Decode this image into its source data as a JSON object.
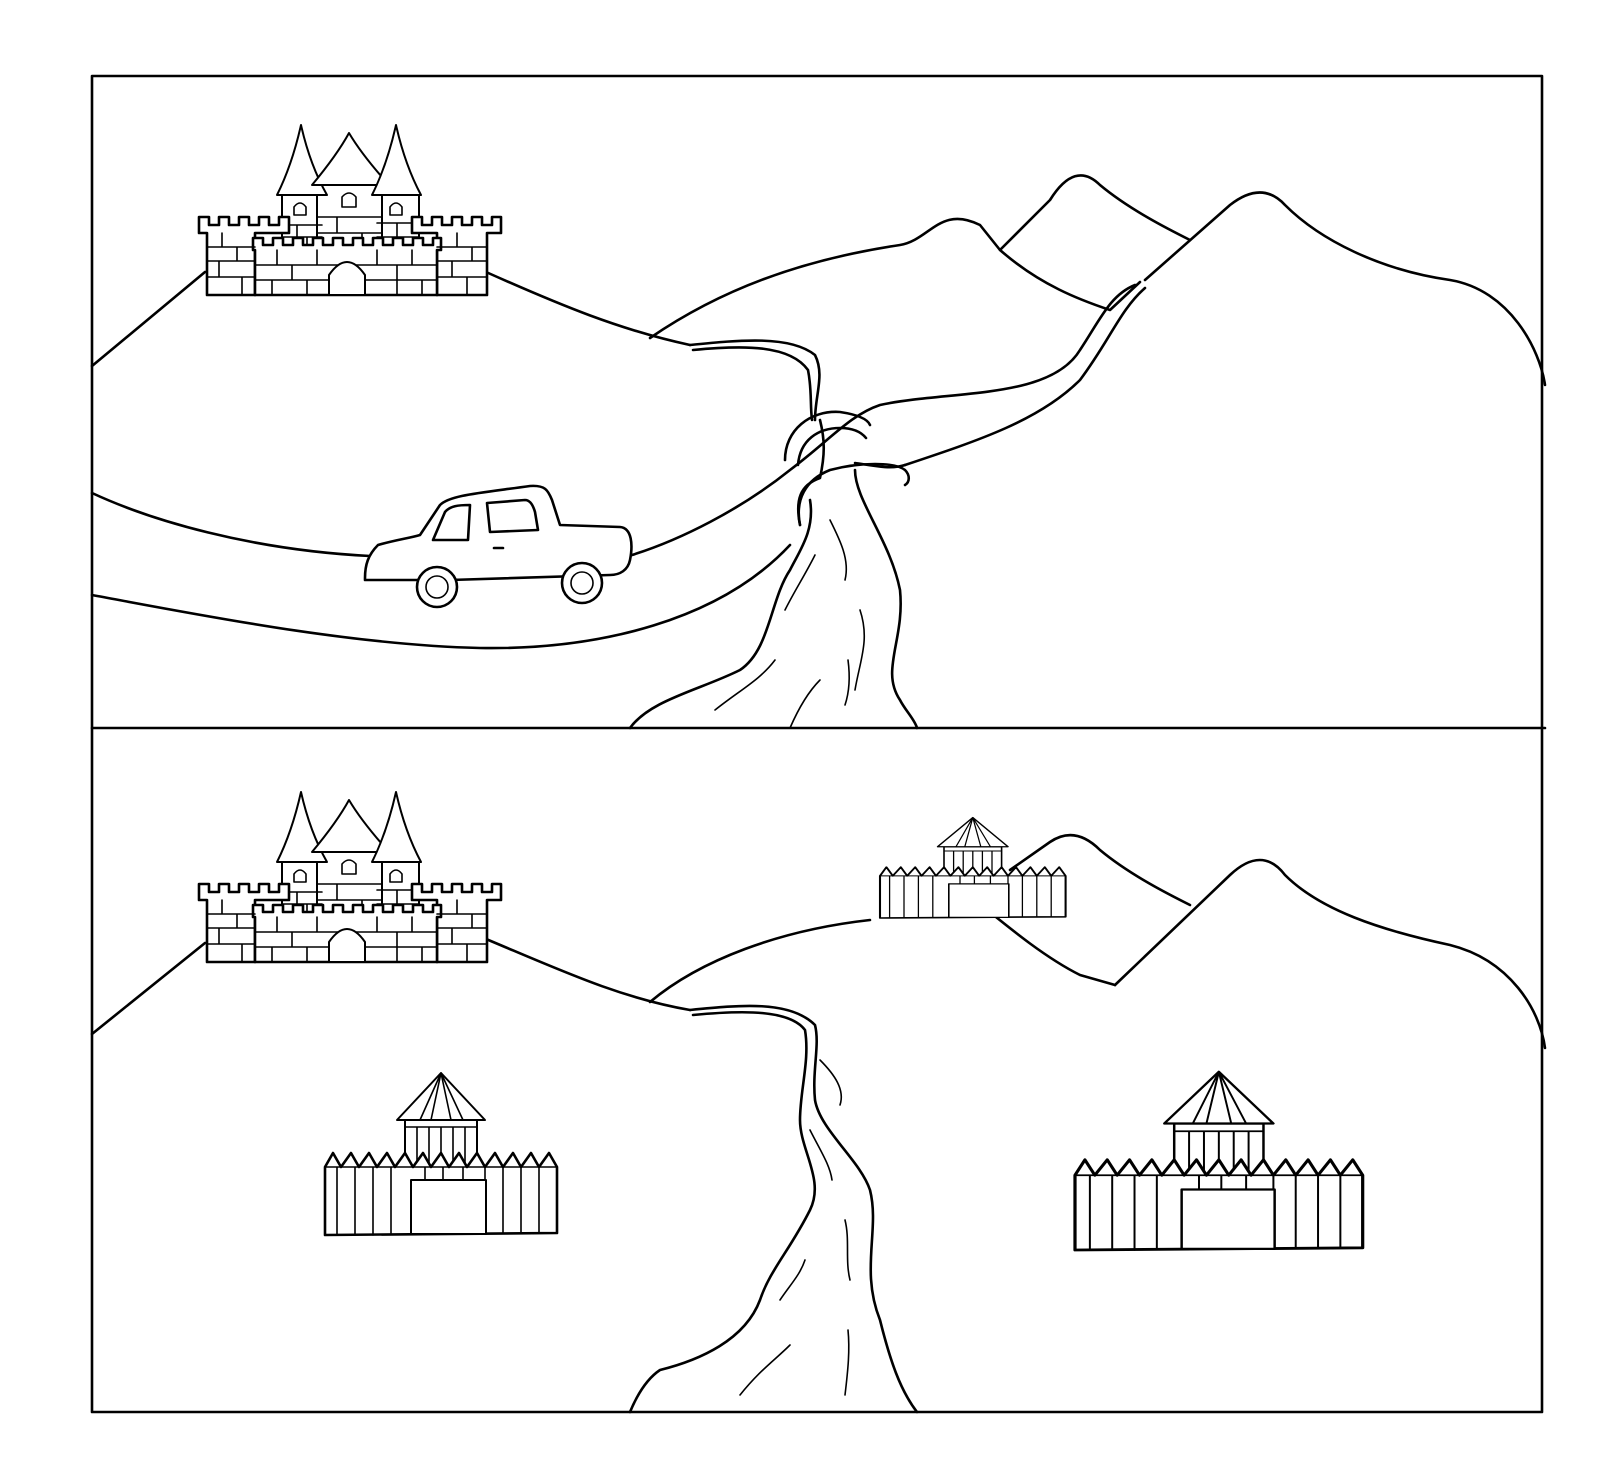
{
  "image": {
    "background_color": "#ffffff",
    "line_color": "#000000",
    "panels": [
      {
        "name": "top-panel",
        "elements": [
          "stone-castle",
          "mountains",
          "river",
          "road",
          "bridge",
          "car"
        ]
      },
      {
        "name": "bottom-panel",
        "elements": [
          "stone-castle",
          "mountains",
          "river",
          "wooden-fort-left",
          "wooden-fort-right",
          "wooden-fort-mountain"
        ]
      }
    ]
  }
}
